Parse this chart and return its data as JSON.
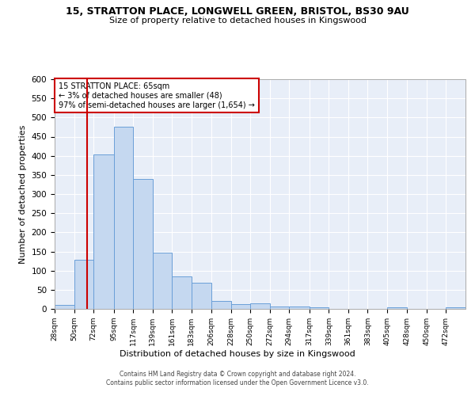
{
  "title_line1": "15, STRATTON PLACE, LONGWELL GREEN, BRISTOL, BS30 9AU",
  "title_line2": "Size of property relative to detached houses in Kingswood",
  "xlabel": "Distribution of detached houses by size in Kingswood",
  "ylabel": "Number of detached properties",
  "footer_line1": "Contains HM Land Registry data © Crown copyright and database right 2024.",
  "footer_line2": "Contains public sector information licensed under the Open Government Licence v3.0.",
  "annotation_title": "15 STRATTON PLACE: 65sqm",
  "annotation_line1": "← 3% of detached houses are smaller (48)",
  "annotation_line2": "97% of semi-detached houses are larger (1,654) →",
  "property_size": 65,
  "bar_color": "#c5d8f0",
  "bar_edge_color": "#6a9fd8",
  "vline_color": "#cc0000",
  "annotation_box_color": "#cc0000",
  "background_color": "#e8eef8",
  "grid_color": "#ffffff",
  "bin_edges": [
    28,
    50,
    72,
    95,
    117,
    139,
    161,
    183,
    206,
    228,
    250,
    272,
    294,
    317,
    339,
    361,
    383,
    405,
    428,
    450,
    472,
    494
  ],
  "bar_values": [
    10,
    128,
    403,
    475,
    340,
    146,
    85,
    68,
    20,
    12,
    14,
    7,
    7,
    5,
    0,
    0,
    0,
    5,
    0,
    0,
    5
  ],
  "ylim": [
    0,
    600
  ],
  "yticks": [
    0,
    50,
    100,
    150,
    200,
    250,
    300,
    350,
    400,
    450,
    500,
    550,
    600
  ],
  "tick_labels": [
    "28sqm",
    "50sqm",
    "72sqm",
    "95sqm",
    "117sqm",
    "139sqm",
    "161sqm",
    "183sqm",
    "206sqm",
    "228sqm",
    "250sqm",
    "272sqm",
    "294sqm",
    "317sqm",
    "339sqm",
    "361sqm",
    "383sqm",
    "405sqm",
    "428sqm",
    "450sqm",
    "472sqm"
  ]
}
